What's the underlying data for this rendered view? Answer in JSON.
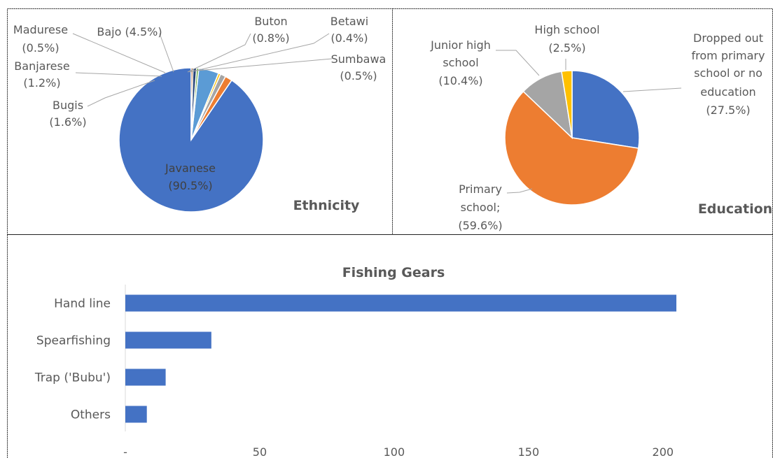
{
  "chart_data": [
    {
      "type": "pie",
      "title": "Ethnicity",
      "slices": [
        {
          "name": "Javanese",
          "value": 90.5,
          "label": "(90.5%)",
          "color": "#4472C4"
        },
        {
          "name": "Bugis",
          "value": 1.6,
          "label": "(1.6%)",
          "color": "#ED7D31"
        },
        {
          "name": "Banjarese",
          "value": 1.2,
          "label": "(1.2%)",
          "color": "#A5A5A5"
        },
        {
          "name": "Madurese",
          "value": 0.5,
          "label": "(0.5%)",
          "color": "#FFC000"
        },
        {
          "name": "Bajo",
          "value": 4.5,
          "label": "Bajo (4.5%)",
          "color": "#5B9BD5"
        },
        {
          "name": "Sumbawa",
          "value": 0.5,
          "label": "(0.5%)",
          "color": "#70AD47"
        },
        {
          "name": "Buton",
          "value": 0.8,
          "label": "(0.8%)",
          "color": "#264478"
        },
        {
          "name": "Betawi",
          "value": 0.4,
          "label": "(0.4%)",
          "color": "#9E480E"
        }
      ]
    },
    {
      "type": "pie",
      "title": "Education",
      "slices": [
        {
          "name": "Dropped out from primary school or no education",
          "value": 27.5,
          "label_lines": [
            "Dropped out",
            "from primary",
            "school or no",
            "education",
            "(27.5%)"
          ],
          "color": "#4472C4"
        },
        {
          "name": "Primary school;",
          "value": 59.6,
          "label_lines": [
            "Primary",
            "school;",
            "(59.6%)"
          ],
          "color": "#ED7D31"
        },
        {
          "name": "Junior high school",
          "value": 10.4,
          "label_lines": [
            "Junior high",
            "school",
            "(10.4%)"
          ],
          "color": "#A5A5A5"
        },
        {
          "name": "High school",
          "value": 2.5,
          "label_lines": [
            "High school",
            "(2.5%)"
          ],
          "color": "#FFC000"
        }
      ]
    },
    {
      "type": "bar",
      "orientation": "horizontal",
      "title": "Fishing Gears",
      "categories": [
        "Hand line",
        "Spearfishing",
        "Trap ('Bubu')",
        "Others"
      ],
      "values": [
        205,
        32,
        15,
        8
      ],
      "xlim": [
        0,
        205
      ],
      "xticks": [
        0,
        50,
        100,
        150,
        200
      ],
      "xtick_labels": [
        "-",
        "50",
        "100",
        "150",
        "200"
      ],
      "color": "#4472C4",
      "grid": false
    }
  ]
}
